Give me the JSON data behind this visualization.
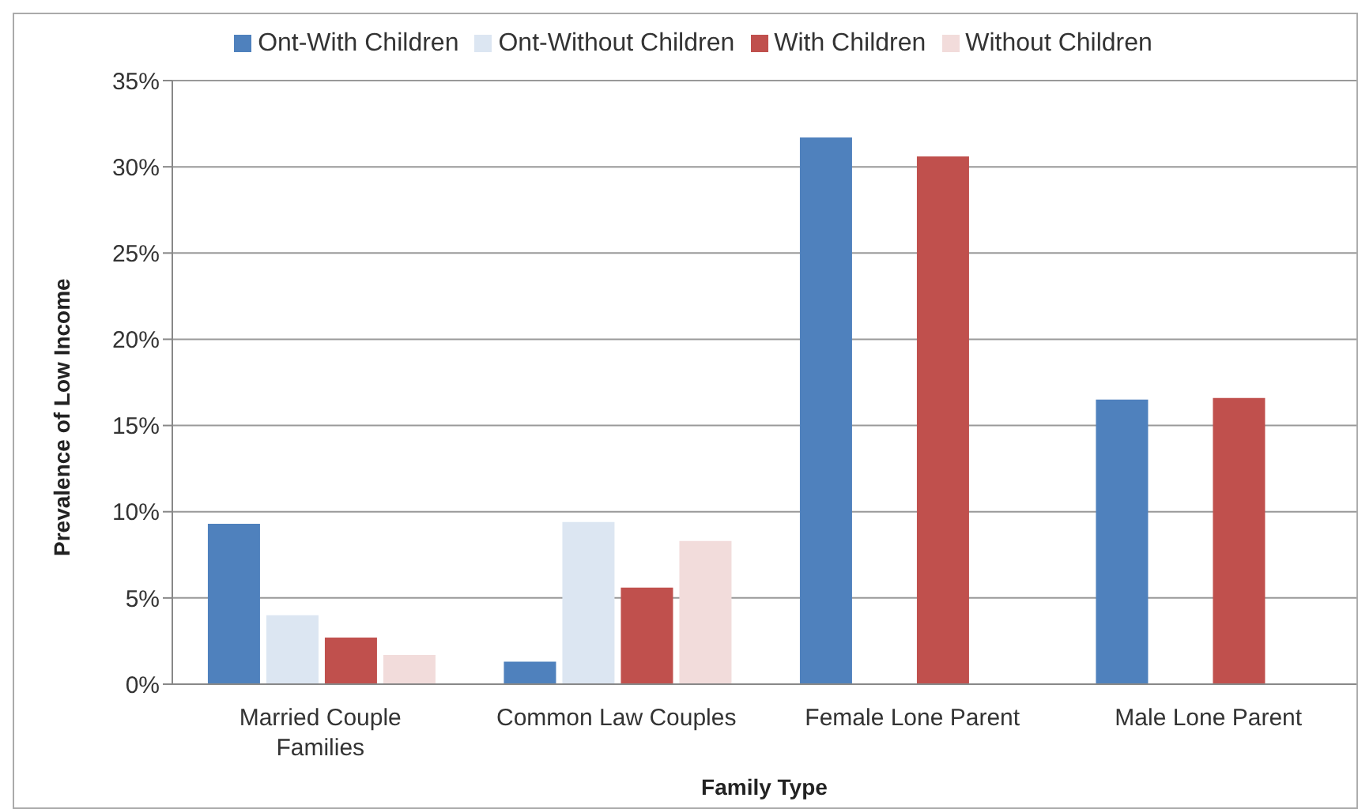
{
  "chart_data": {
    "type": "bar",
    "xlabel": "Family Type",
    "ylabel": "Prevalence of Low Income",
    "categories": [
      "Married Couple Families",
      "Common Law Couples",
      "Female Lone Parent",
      "Male Lone Parent"
    ],
    "series": [
      {
        "name": "Ont-With Children",
        "color": "#4f81bd",
        "values": [
          9.3,
          1.3,
          31.7,
          16.5
        ]
      },
      {
        "name": "Ont-Without Children",
        "color": "#dce6f2",
        "values": [
          4.0,
          9.4,
          null,
          null
        ]
      },
      {
        "name": "With Children",
        "color": "#c0504d",
        "values": [
          2.7,
          5.6,
          30.6,
          16.6
        ]
      },
      {
        "name": "Without Children",
        "color": "#f2dcdb",
        "values": [
          1.7,
          8.3,
          null,
          null
        ]
      }
    ],
    "ylim": [
      0,
      35
    ],
    "yticks": [
      {
        "value": 0,
        "label": "0%"
      },
      {
        "value": 5,
        "label": "5%"
      },
      {
        "value": 10,
        "label": "10%"
      },
      {
        "value": 15,
        "label": "15%"
      },
      {
        "value": 20,
        "label": "20%"
      },
      {
        "value": 25,
        "label": "25%"
      },
      {
        "value": 30,
        "label": "30%"
      },
      {
        "value": 35,
        "label": "35%"
      }
    ],
    "grid": "y",
    "legend": "top"
  }
}
